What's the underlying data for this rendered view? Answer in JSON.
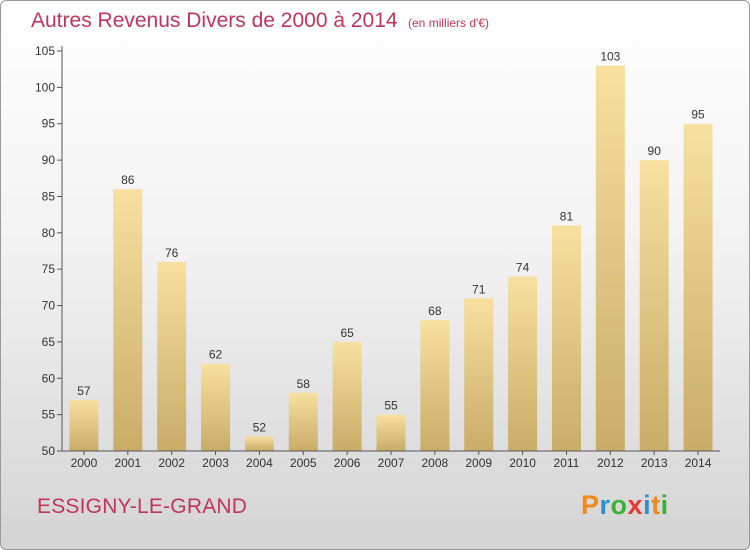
{
  "header": {
    "title": "Autres Revenus Divers de 2000 à 2014",
    "unit": "(en milliers d'€)"
  },
  "footer": {
    "city": "ESSIGNY-LE-GRAND",
    "logo_letters": [
      "P",
      "r",
      "o",
      "x",
      "i",
      "t",
      "i"
    ],
    "logo_colors": [
      "#f08a1c",
      "#2b8fd6",
      "#3ab23a",
      "#e23a2e",
      "#2b8fd6",
      "#f08a1c",
      "#3ab23a"
    ]
  },
  "chart_data": {
    "type": "bar",
    "title": "Autres Revenus Divers de 2000 à 2014",
    "subtitle": "(en milliers d'€)",
    "xlabel": "",
    "ylabel": "",
    "categories": [
      "2000",
      "2001",
      "2002",
      "2003",
      "2004",
      "2005",
      "2006",
      "2007",
      "2008",
      "2009",
      "2010",
      "2011",
      "2012",
      "2013",
      "2014"
    ],
    "values": [
      57,
      86,
      76,
      62,
      52,
      58,
      65,
      55,
      68,
      71,
      74,
      81,
      103,
      90,
      95
    ],
    "ylim": [
      50,
      105
    ],
    "yticks": [
      50,
      55,
      60,
      65,
      70,
      75,
      80,
      85,
      90,
      95,
      100,
      105
    ],
    "grid": false,
    "bar_color_top": "#f7e0a0",
    "bar_color_bottom": "#c9ac68"
  }
}
